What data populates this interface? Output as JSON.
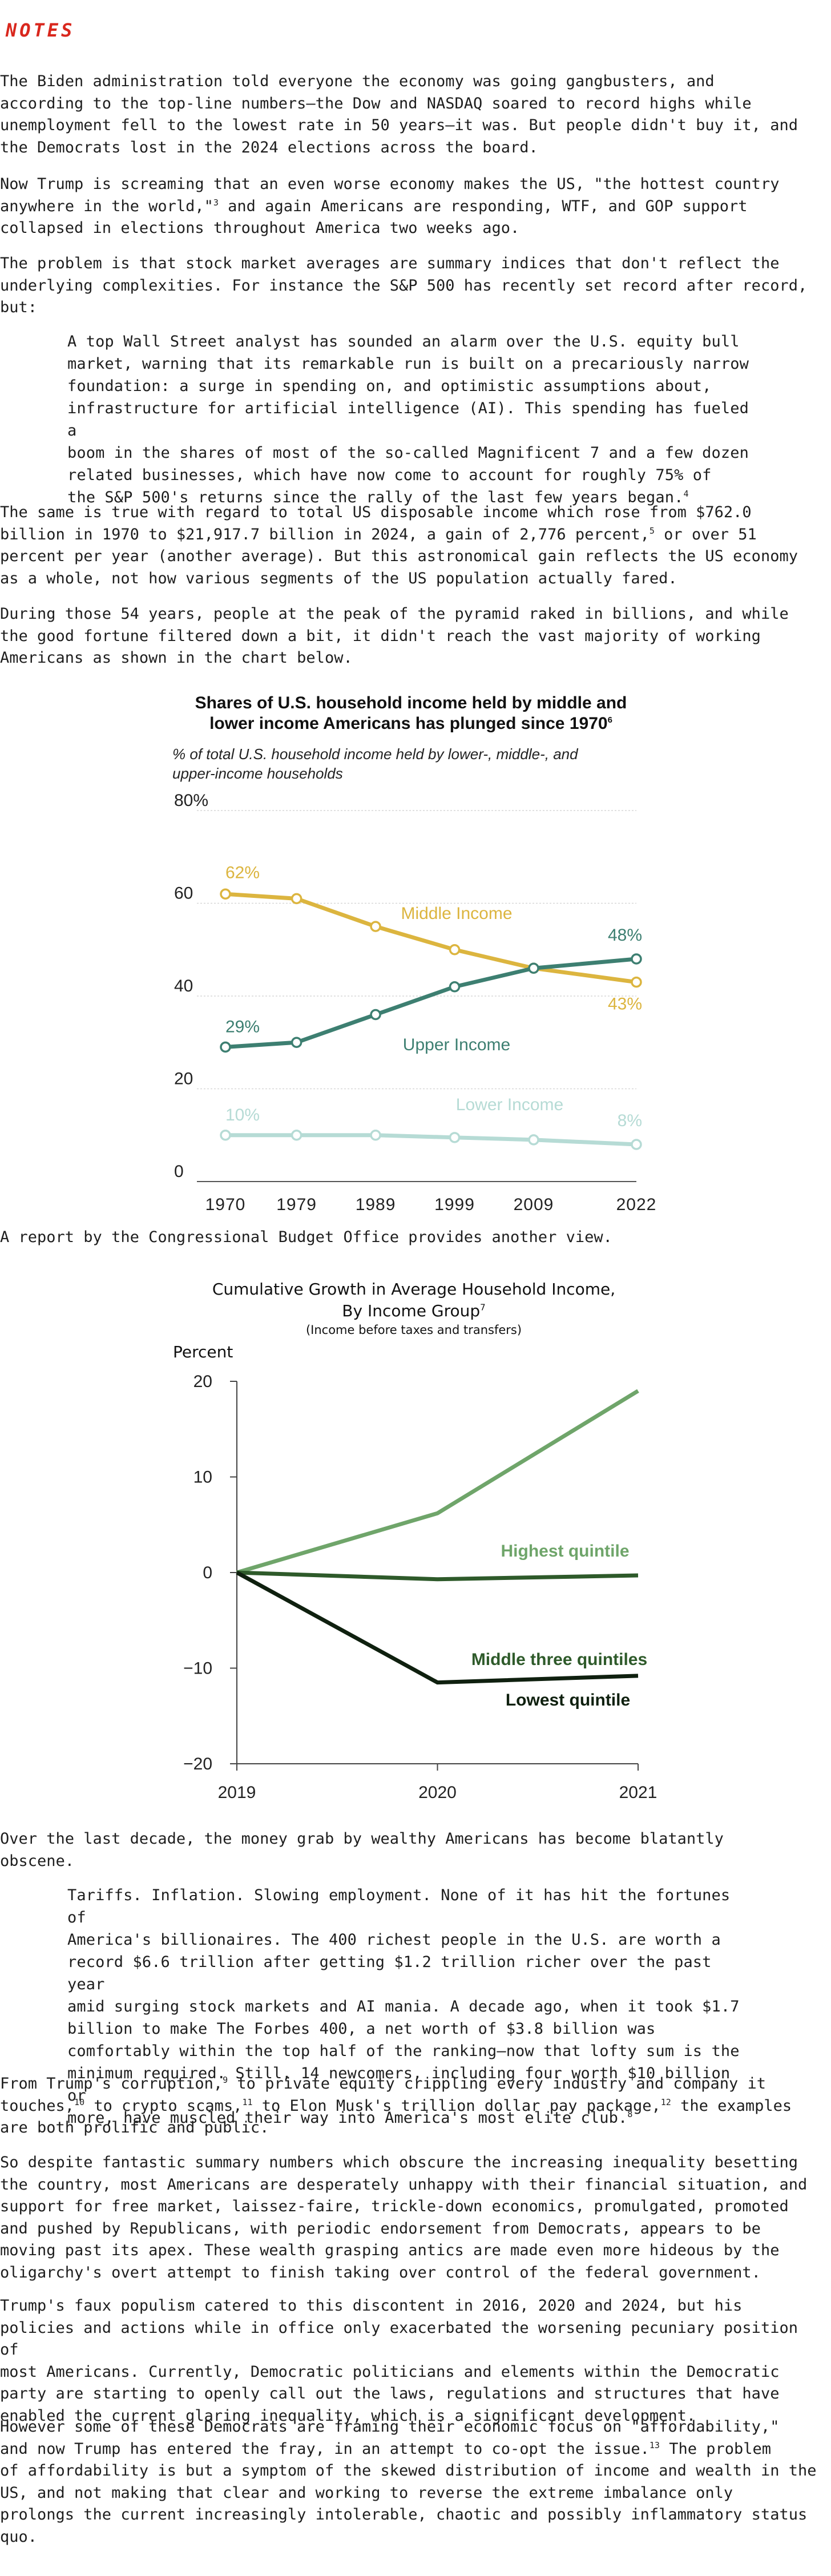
{
  "header": {
    "title": "NOTES"
  },
  "paragraphs": {
    "p1": "The Biden administration told everyone the economy was going gangbusters, and\naccording to the top-line numbers—the Dow and NASDAQ soared to record highs while\nunemployment fell to the lowest rate in 50 years—it was.  But people didn't buy it, and\nthe Democrats lost in the 2024 elections across the board.",
    "p2a": "Now Trump is screaming that an even worse economy makes the US, \"the hottest country\nanywhere in the world,\"",
    "p2_note": "3",
    "p2b": " and again Americans are responding, WTF, and GOP support\ncollapsed in elections throughout America two weeks ago.",
    "p3": "The problem is that stock market averages are summary indices that don't reflect the\nunderlying complexities.  For instance the S&P 500 has recently set record after record,\nbut:",
    "q1": "A top Wall Street analyst has sounded an alarm over the U.S. equity bull\nmarket, warning that its remarkable run is built on a precariously narrow\nfoundation: a surge in spending on, and optimistic assumptions about,\ninfrastructure for artificial intelligence (AI). This spending has fueled a\nboom in the shares of most of the so-called Magnificent 7 and a few dozen\nrelated businesses, which have now come to account for roughly 75% of\nthe S&P 500's returns since the rally of the last few years began.",
    "q1_note": "4",
    "p4a": "The same is true with regard to total US disposable income which rose from $762.0\nbillion in 1970 to $21,917.7 billion in 2024, a gain of 2,776 percent,",
    "p4_note": "5",
    "p4b": " or over 51\npercent per year (another average).  But this astronomical gain reflects the US economy\nas a whole, not how various segments of the US population actually fared.",
    "p5": "During those 54 years, people at the peak of the pyramid raked in billions, and while\nthe good fortune filtered down a bit, it didn't reach the vast majority of working\nAmericans as shown in the chart below.",
    "p6": "A report by the Congressional Budget Office provides another view.",
    "p7": "Over the last decade, the money grab by wealthy Americans has become blatantly\nobscene.",
    "q2": "Tariffs. Inflation. Slowing employment. None of it has hit the fortunes of\nAmerica's billionaires. The 400 richest people in the U.S. are worth a\nrecord $6.6 trillion after getting $1.2 trillion richer over the past year\namid surging stock markets and AI mania. A decade ago, when it took $1.7\nbillion to make The Forbes 400, a net worth of $3.8 billion was\ncomfortably within the top half of the ranking—now that lofty sum is the\nminimum required. Still, 14 newcomers, including four worth $10 billion or\nmore, have muscled their way into America's most elite club.",
    "q2_note": "8",
    "p8a": "From Trump's corruption,",
    "p8_n9": "9",
    "p8b": " to private equity crippling every industry and company it\ntouches,",
    "p8_n10": "10",
    "p8c": " to crypto scams,",
    "p8_n11": "11",
    "p8d": " to Elon Musk's trillion dollar pay package,",
    "p8_n12": "12",
    "p8e": " the examples\nare both prolific and public.",
    "p9": "So despite fantastic summary numbers which obscure the increasing inequality besetting\nthe country, most Americans are desperately unhappy with their financial situation, and\nsupport for free market, laissez-faire, trickle-down economics, promulgated, promoted\nand pushed by Republicans, with periodic endorsement from Democrats, appears to be\nmoving past its apex.  These wealth grasping antics are made even more hideous by the\noligarchy's overt attempt to finish taking over control of the federal government.",
    "p10": "Trump's faux populism catered to this discontent in 2016, 2020 and 2024, but his\npolicies and actions while in office only exacerbated the worsening pecuniary position of\nmost Americans.  Currently, Democratic politicians and elements within the Democratic\nparty are starting to openly call out the laws, regulations and structures that have\nenabled the current glaring inequality, which is a significant development.",
    "p11a": "However some of these Democrats are framing their economic focus on \"affordability,\"\nand now Trump has entered the fray, in an attempt to co-opt the issue.",
    "p11_note": "13",
    "p11b": "  The problem\nof affordability is but a symptom of the skewed distribution of income and wealth in the\nUS, and not making that clear and working to reverse the extreme imbalance only\nprolongs the current increasingly intolerable, chaotic and possibly inflammatory status\nquo."
  },
  "chart_data": [
    {
      "type": "line",
      "title": "Shares of U.S. household income held by middle and\nlower income Americans has plunged since 1970",
      "title_note": "6",
      "subtitle": "% of total U.S. household income held by lower-, middle-, and\nupper-income households",
      "x": [
        "1970",
        "1979",
        "1989",
        "1999",
        "2009",
        "2022"
      ],
      "y_ticks": [
        "0",
        "20",
        "40",
        "60",
        "80%"
      ],
      "ylim": [
        0,
        80
      ],
      "grid": true,
      "series": [
        {
          "name": "Middle Income",
          "values": [
            62,
            61,
            55,
            50,
            46,
            43
          ],
          "color": "#dcb53f",
          "start_label": "62%",
          "end_label": "43%"
        },
        {
          "name": "Upper Income",
          "values": [
            29,
            30,
            36,
            42,
            46,
            48
          ],
          "color": "#3d7f71",
          "start_label": "29%",
          "end_label": "48%"
        },
        {
          "name": "Lower Income",
          "values": [
            10,
            10,
            10,
            9.5,
            9,
            8
          ],
          "color": "#b6dbd5",
          "start_label": "10%",
          "end_label": "8%"
        }
      ]
    },
    {
      "type": "line",
      "title": "Cumulative Growth in Average Household Income,\nBy Income Group",
      "title_note": "7",
      "note": "(Income before taxes and transfers)",
      "ylabel": "Percent",
      "x": [
        "2019",
        "2020",
        "2021"
      ],
      "y_ticks": [
        "20",
        "10",
        "0",
        "-10",
        "-20"
      ],
      "ylim": [
        -20,
        20
      ],
      "grid": false,
      "series": [
        {
          "name": "Highest quintile",
          "values": [
            0,
            6.2,
            19
          ],
          "color": "#6fa56a"
        },
        {
          "name": "Middle three quintiles",
          "values": [
            0,
            -0.7,
            -0.3
          ],
          "color": "#2e5a2a"
        },
        {
          "name": "Lowest quintile",
          "values": [
            0,
            -11.5,
            -10.8
          ],
          "color": "#0f200f"
        }
      ]
    }
  ]
}
